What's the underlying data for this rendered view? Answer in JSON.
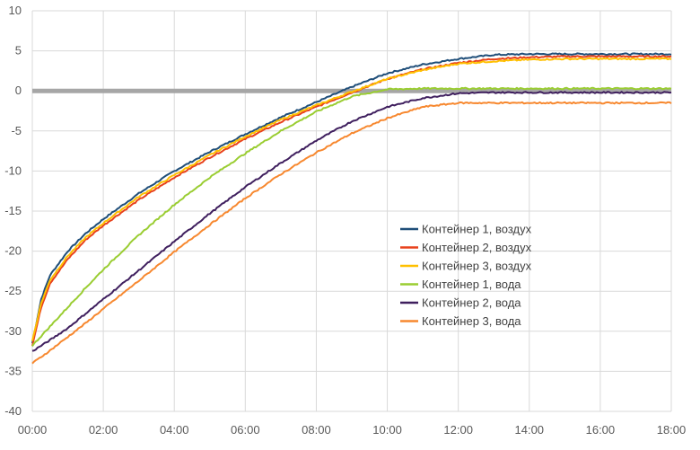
{
  "chart_data": {
    "type": "line",
    "title": "",
    "xlabel": "",
    "ylabel": "",
    "x_ticks": [
      "00:00",
      "02:00",
      "04:00",
      "06:00",
      "08:00",
      "10:00",
      "12:00",
      "14:00",
      "16:00",
      "18:00"
    ],
    "y_ticks": [
      10,
      5,
      0,
      -5,
      -10,
      -15,
      -20,
      -25,
      -30,
      -35,
      -40
    ],
    "xlim": [
      0,
      18
    ],
    "ylim": [
      -40,
      10
    ],
    "grid": true,
    "legend_position": "center-right",
    "x": [
      0,
      0.25,
      0.5,
      1,
      1.5,
      2,
      3,
      4,
      5,
      6,
      7,
      8,
      9,
      10,
      11,
      12,
      13,
      14,
      15,
      16,
      17,
      18
    ],
    "series": [
      {
        "name": "Контейнер 1, воздух",
        "color": "#1f4e79",
        "values": [
          -31.5,
          -26,
          -23,
          -20,
          -17.8,
          -16,
          -12.8,
          -10,
          -7.6,
          -5.4,
          -3.3,
          -1.4,
          0.5,
          2.2,
          3.3,
          4.0,
          4.5,
          4.6,
          4.6,
          4.6,
          4.6,
          4.6
        ]
      },
      {
        "name": "Контейнер 2, воздух",
        "color": "#e8411b",
        "values": [
          -31.8,
          -27,
          -24,
          -21,
          -18.6,
          -16.8,
          -13.6,
          -10.8,
          -8.3,
          -6.0,
          -3.9,
          -2.0,
          -0.2,
          1.5,
          2.7,
          3.5,
          4.0,
          4.2,
          4.3,
          4.3,
          4.3,
          4.3
        ]
      },
      {
        "name": "Контейнер 3, воздух",
        "color": "#ffc000",
        "values": [
          -31.2,
          -26.5,
          -23.6,
          -20.6,
          -18.3,
          -16.5,
          -13.2,
          -10.5,
          -8.0,
          -5.7,
          -3.6,
          -1.8,
          -0.1,
          1.5,
          2.6,
          3.4,
          3.7,
          3.9,
          4.0,
          4.0,
          4.0,
          4.0
        ]
      },
      {
        "name": "Контейнер 1, вода",
        "color": "#9acd32",
        "values": [
          -31.8,
          -30.6,
          -29.4,
          -27,
          -24.6,
          -22.3,
          -18,
          -14.2,
          -10.8,
          -7.8,
          -5,
          -2.6,
          -0.7,
          0.2,
          0.3,
          0.3,
          0.3,
          0.3,
          0.3,
          0.3,
          0.3,
          0.3
        ]
      },
      {
        "name": "Контейнер 2, вода",
        "color": "#3f1f5e",
        "values": [
          -32.5,
          -31.8,
          -31.1,
          -29.6,
          -27.8,
          -26,
          -22.4,
          -18.8,
          -15.3,
          -12.0,
          -9.0,
          -6.2,
          -3.8,
          -2.0,
          -0.9,
          -0.3,
          -0.2,
          -0.2,
          -0.2,
          -0.2,
          -0.2,
          -0.2
        ]
      },
      {
        "name": "Контейнер 3, вода",
        "color": "#f7882f",
        "values": [
          -34,
          -33.2,
          -32.4,
          -30.7,
          -29,
          -27.2,
          -23.7,
          -20.1,
          -16.7,
          -13.4,
          -10.4,
          -7.7,
          -5.3,
          -3.4,
          -2.0,
          -1.5,
          -1.5,
          -1.5,
          -1.5,
          -1.5,
          -1.5,
          -1.5
        ]
      }
    ],
    "reference_line": {
      "y": 0,
      "color": "#a6a6a6"
    }
  }
}
